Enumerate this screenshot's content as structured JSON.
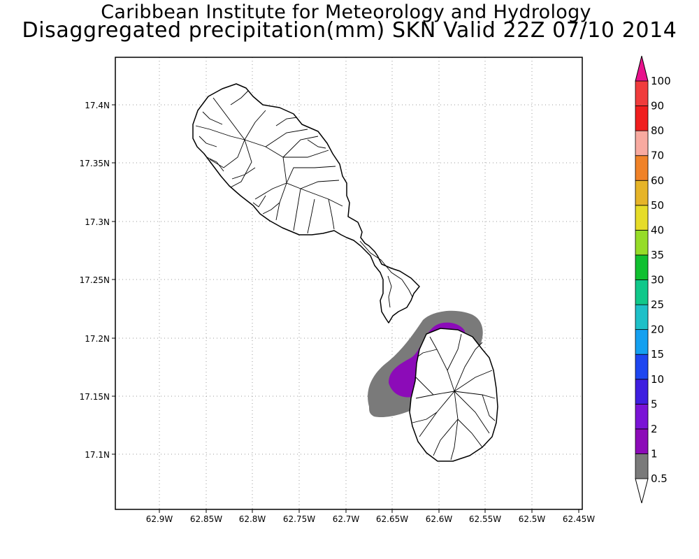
{
  "title": {
    "line1": "Caribbean Institute for Meteorology and Hydrology",
    "line2": "Disaggregated precipitation(mm) SKN Valid 22Z 07/10 2014"
  },
  "map": {
    "lon_labels": [
      "62.9W",
      "62.85W",
      "62.8W",
      "62.75W",
      "62.7W",
      "62.65W",
      "62.6W",
      "62.55W",
      "62.5W",
      "62.45W"
    ],
    "lat_labels": [
      "17.4N",
      "17.35N",
      "17.3N",
      "17.25N",
      "17.2N",
      "17.15N",
      "17.1N"
    ],
    "lon_range": [
      -62.947,
      -62.447
    ],
    "lat_range": [
      17.053,
      17.443
    ],
    "grid": "dotted",
    "islands": [
      "St Kitts",
      "Nevis"
    ]
  },
  "colorbar": {
    "labels": [
      "0.5",
      "1",
      "2",
      "5",
      "10",
      "15",
      "20",
      "25",
      "30",
      "35",
      "40",
      "50",
      "60",
      "70",
      "80",
      "90",
      "100"
    ],
    "colors": [
      "#7a7a7a",
      "#8c0bb8",
      "#7a14d6",
      "#3f1fe0",
      "#1e46f0",
      "#14a0f0",
      "#1ec0c8",
      "#10c88a",
      "#10c030",
      "#96dc28",
      "#e6dc28",
      "#e6b428",
      "#f08228",
      "#f8aaa0",
      "#f01e1e",
      "#f03c3c"
    ],
    "top_arrow_color": "#e8128c"
  }
}
